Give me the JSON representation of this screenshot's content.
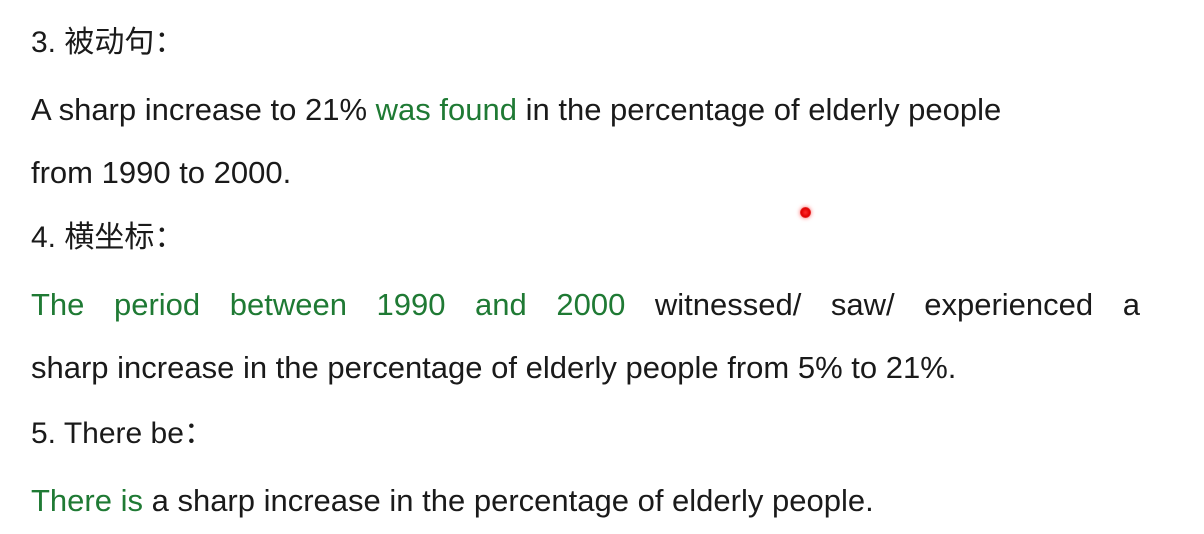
{
  "items": [
    {
      "heading": "3. 被动句：",
      "example_line1": {
        "pre": "A sharp increase to 21% ",
        "highlight": "was found",
        "post": " in the percentage of elderly people"
      },
      "example_line2": "from 1990 to 2000."
    },
    {
      "heading": "4. 横坐标：",
      "example_line1_words": [
        "The",
        "period",
        "between",
        "1990",
        "and",
        "2000",
        "witnessed/",
        "saw/",
        "experienced",
        "a"
      ],
      "example_line1_highlight_count": 6,
      "example_line2": "sharp increase in the percentage of elderly people from 5% to 21%."
    },
    {
      "heading": "5. There be：",
      "example_line1": {
        "highlight": "There is",
        "post": " a sharp increase in the percentage of elderly people."
      }
    }
  ],
  "colors": {
    "text": "#1a1a1a",
    "highlight": "#1f7a34",
    "pointer": "#ff2a2a"
  }
}
